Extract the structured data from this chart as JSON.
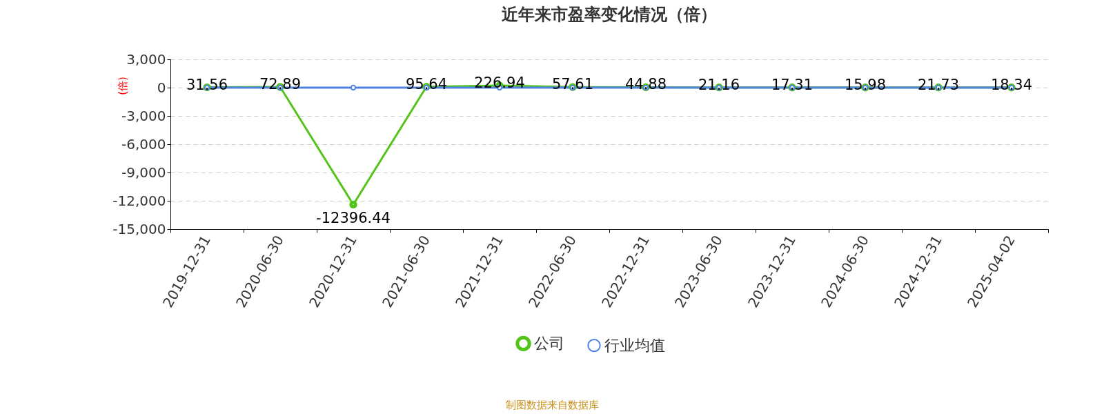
{
  "chart_data": {
    "type": "line",
    "title": "近年来市盈率变化情况（倍）",
    "ylabel": "(倍)",
    "categories": [
      "2019-12-31",
      "2020-06-30",
      "2020-12-31",
      "2021-06-30",
      "2021-12-31",
      "2022-06-30",
      "2022-12-31",
      "2023-06-30",
      "2023-12-31",
      "2024-06-30",
      "2024-12-31",
      "2025-04-02"
    ],
    "series": [
      {
        "name": "公司",
        "color": "#52c41a",
        "values": [
          31.56,
          72.89,
          -12396.44,
          95.64,
          226.94,
          57.61,
          44.88,
          21.16,
          17.31,
          15.98,
          21.73,
          18.34
        ],
        "value_labels": [
          "31.56",
          "72.89",
          "-12396.44",
          "95.64",
          "226.94",
          "57.61",
          "44.88",
          "21.16",
          "17.31",
          "15.98",
          "21.73",
          "18.34"
        ]
      },
      {
        "name": "行业均值",
        "color": "#4e83e6",
        "values": [
          0,
          0,
          0,
          0,
          0,
          0,
          0,
          0,
          0,
          0,
          0,
          0
        ]
      }
    ],
    "ylim": [
      -15000,
      3000
    ],
    "yticks": [
      {
        "value": -15000,
        "label": "-15,000"
      },
      {
        "value": -12000,
        "label": "-12,000"
      },
      {
        "value": -9000,
        "label": "-9,000"
      },
      {
        "value": -6000,
        "label": "-6,000"
      },
      {
        "value": -3000,
        "label": "-3,000"
      },
      0,
      {
        "value": 3000,
        "label": "3,000"
      }
    ],
    "grid": "y",
    "legend": "bottom",
    "marker": "circle",
    "annotations": [
      "制图数据来自数据库"
    ]
  }
}
